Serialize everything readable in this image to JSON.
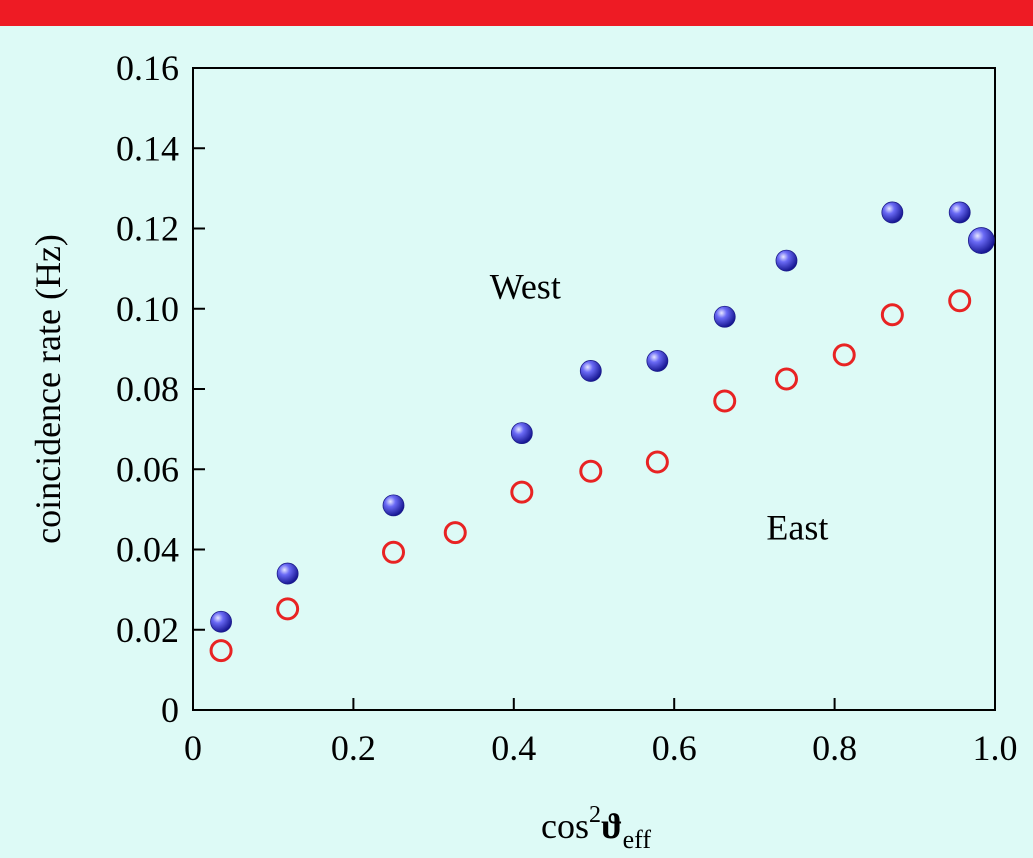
{
  "chart_data": {
    "type": "scatter",
    "title": "",
    "xlabel": "cos",
    "xlabel_sup": "2",
    "xlabel_symbol": "ϑ",
    "xlabel_sub": "eff",
    "ylabel": "coincidence rate (Hz)",
    "xlim": [
      0,
      1.0
    ],
    "ylim": [
      0,
      0.16
    ],
    "grid": false,
    "x_ticks": [
      0,
      0.2,
      0.4,
      0.6,
      0.8,
      1.0
    ],
    "x_tick_labels": [
      "0",
      "0.2",
      "0.4",
      "0.6",
      "0.8",
      "1.0"
    ],
    "y_ticks": [
      0,
      0.02,
      0.04,
      0.06,
      0.08,
      0.1,
      0.12,
      0.14,
      0.16
    ],
    "y_tick_labels": [
      "0",
      "0.02",
      "0.04",
      "0.06",
      "0.08",
      "0.10",
      "0.12",
      "0.14",
      "0.16"
    ],
    "series": [
      {
        "name": "West",
        "marker": "filled-sphere",
        "color": "#3a3ae8",
        "points": [
          {
            "x": 0.035,
            "y": 0.022
          },
          {
            "x": 0.118,
            "y": 0.034
          },
          {
            "x": 0.25,
            "y": 0.051
          },
          {
            "x": 0.41,
            "y": 0.069
          },
          {
            "x": 0.496,
            "y": 0.0845
          },
          {
            "x": 0.579,
            "y": 0.087
          },
          {
            "x": 0.663,
            "y": 0.098
          },
          {
            "x": 0.74,
            "y": 0.112
          },
          {
            "x": 0.872,
            "y": 0.124
          },
          {
            "x": 0.956,
            "y": 0.124
          },
          {
            "x": 0.983,
            "y": 0.117
          }
        ]
      },
      {
        "name": "East",
        "marker": "open-circle",
        "color": "#e82323",
        "points": [
          {
            "x": 0.035,
            "y": 0.0148
          },
          {
            "x": 0.118,
            "y": 0.0252
          },
          {
            "x": 0.25,
            "y": 0.0393
          },
          {
            "x": 0.327,
            "y": 0.0442
          },
          {
            "x": 0.41,
            "y": 0.0543
          },
          {
            "x": 0.496,
            "y": 0.0595
          },
          {
            "x": 0.579,
            "y": 0.0618
          },
          {
            "x": 0.663,
            "y": 0.077
          },
          {
            "x": 0.74,
            "y": 0.0825
          },
          {
            "x": 0.812,
            "y": 0.0885
          },
          {
            "x": 0.872,
            "y": 0.0985
          },
          {
            "x": 0.956,
            "y": 0.102
          }
        ]
      }
    ],
    "annotations": [
      {
        "text": "West",
        "x": 0.37,
        "y": 0.1025
      },
      {
        "text": "East",
        "x": 0.715,
        "y": 0.0425
      }
    ]
  },
  "colors": {
    "background": "#ddfaf6",
    "top_bar": "#ee1b24",
    "west": "#3a3ae8",
    "east": "#e82323"
  }
}
